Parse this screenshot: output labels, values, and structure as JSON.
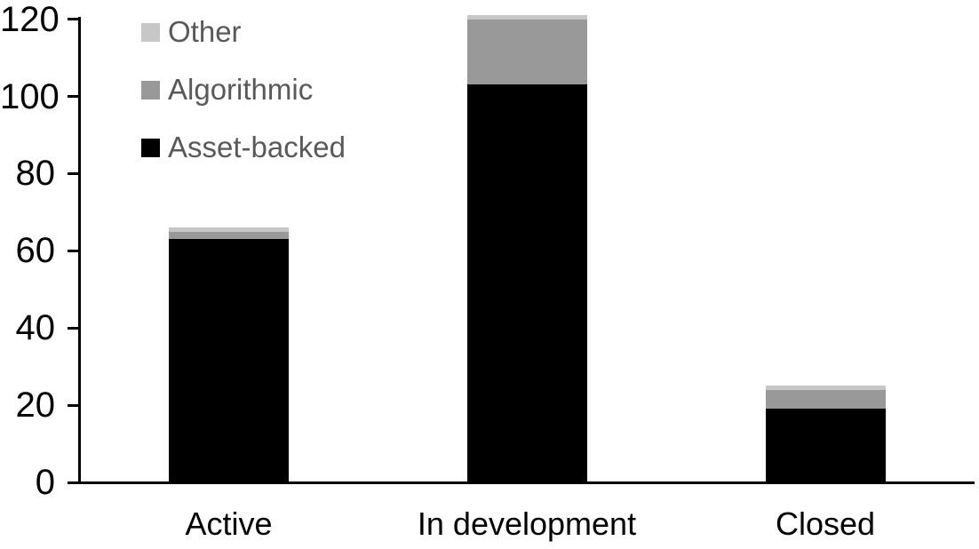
{
  "chart_data": {
    "type": "bar",
    "stacked": true,
    "title": "",
    "xlabel": "",
    "ylabel": "",
    "categories": [
      "Active",
      "In development",
      "Closed"
    ],
    "series": [
      {
        "name": "Asset-backed",
        "color": "#000000",
        "values": [
          63,
          103,
          19
        ]
      },
      {
        "name": "Algorithmic",
        "color": "#999999",
        "values": [
          2,
          17,
          5
        ]
      },
      {
        "name": "Other",
        "color": "#c7c7c7",
        "values": [
          1,
          1,
          1
        ]
      }
    ],
    "totals": [
      66,
      121,
      25
    ],
    "ylim": [
      0,
      120
    ],
    "yticks": [
      "0",
      "20",
      "40",
      "60",
      "80",
      "100",
      "120"
    ],
    "grid": false,
    "legend_position": "top-left"
  },
  "legend": {
    "items": [
      {
        "label": "Other",
        "color": "#c7c7c7"
      },
      {
        "label": "Algorithmic",
        "color": "#999999"
      },
      {
        "label": "Asset-backed",
        "color": "#000000"
      }
    ]
  },
  "colors": {
    "background": "#ffffff",
    "axis": "#000000",
    "axis_text": "#000000",
    "legend_text": "#595959"
  }
}
